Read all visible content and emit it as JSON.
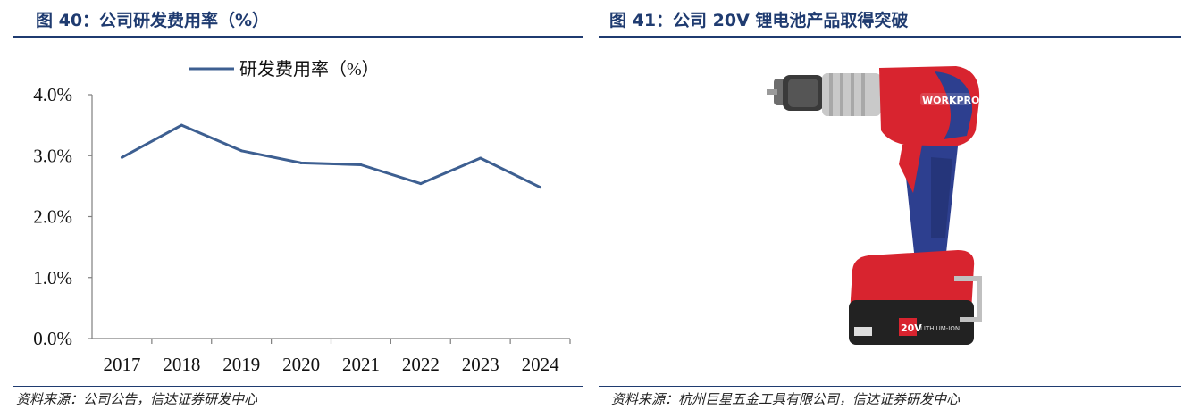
{
  "left_panel": {
    "figure_title": "图 40：公司研发费用率（%）",
    "source": "资料来源：公司公告，信达证券研发中心"
  },
  "right_panel": {
    "figure_title": "图 41：公司 20V 锂电池产品取得突破",
    "source": "资料来源：杭州巨星五金工具有限公司，信达证券研发中心",
    "image": {
      "brand_text": "WORKPRO",
      "battery_text": "20V",
      "battery_text_2": "LITHIUM-ION"
    }
  },
  "chart_data": {
    "type": "line",
    "categories": [
      "2017",
      "2018",
      "2019",
      "2020",
      "2021",
      "2022",
      "2023",
      "2024"
    ],
    "series": [
      {
        "name": "研发费用率（%）",
        "values": [
          2.97,
          3.5,
          3.08,
          2.88,
          2.85,
          2.54,
          2.96,
          2.48
        ],
        "color": "#3d5f91"
      }
    ],
    "y_ticks": [
      "4.0%",
      "3.0%",
      "2.0%",
      "1.0%",
      "0.0%"
    ],
    "ylim": [
      0,
      4
    ],
    "legend_position": "top",
    "grid": false
  },
  "colors": {
    "title": "#1f3b70",
    "line": "#3d5f91"
  }
}
